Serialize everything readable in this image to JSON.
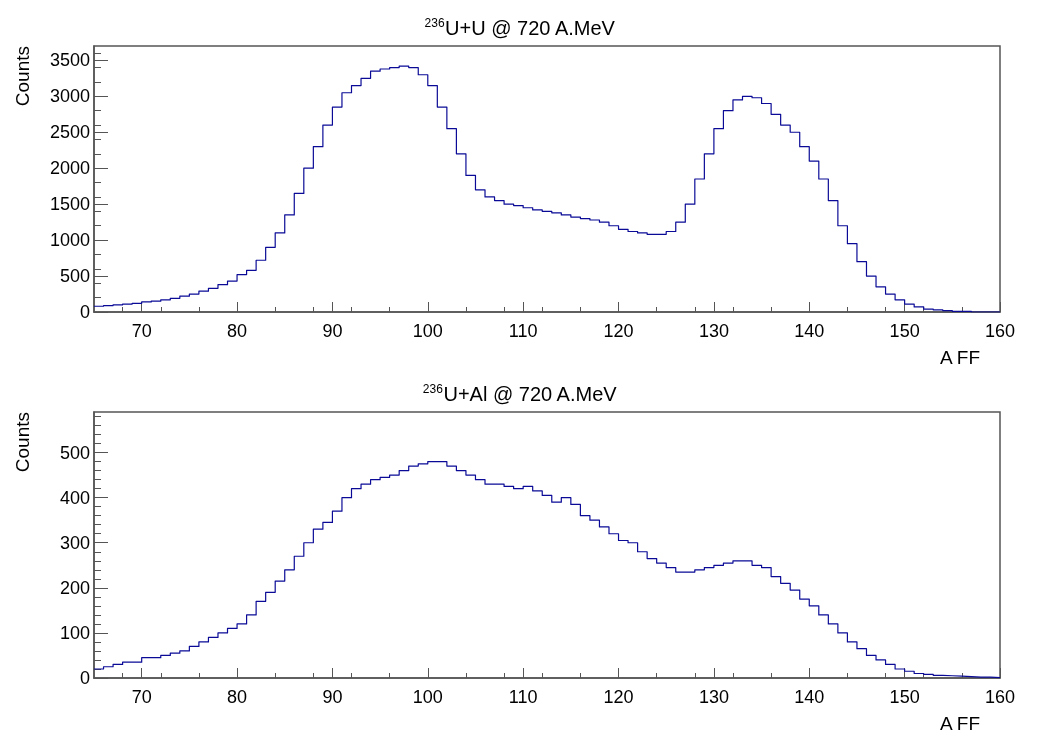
{
  "chart_data": [
    {
      "type": "histogram",
      "title": "$^{236}$U+U @ 720 A.MeV",
      "xlabel": "A FF",
      "ylabel": "Counts",
      "color": "#0a0a96",
      "xlim": [
        65,
        160
      ],
      "xticks": [
        70,
        80,
        90,
        100,
        110,
        120,
        130,
        140,
        150,
        160
      ],
      "ylim": [
        0,
        3700
      ],
      "yticks": [
        0,
        500,
        1000,
        1500,
        2000,
        2500,
        3000,
        3500
      ],
      "grid": false,
      "bins": [
        65,
        66,
        67,
        68,
        69,
        70,
        71,
        72,
        73,
        74,
        75,
        76,
        77,
        78,
        79,
        80,
        81,
        82,
        83,
        84,
        85,
        86,
        87,
        88,
        89,
        90,
        91,
        92,
        93,
        94,
        95,
        96,
        97,
        98,
        99,
        100,
        101,
        102,
        103,
        104,
        105,
        106,
        107,
        108,
        109,
        110,
        111,
        112,
        113,
        114,
        115,
        116,
        117,
        118,
        119,
        120,
        121,
        122,
        123,
        124,
        125,
        126,
        127,
        128,
        129,
        130,
        131,
        132,
        133,
        134,
        135,
        136,
        137,
        138,
        139,
        140,
        141,
        142,
        143,
        144,
        145,
        146,
        147,
        148,
        149,
        150,
        151,
        152,
        153,
        154,
        155,
        156,
        157,
        158,
        159,
        160
      ],
      "values": [
        80,
        90,
        100,
        110,
        120,
        140,
        150,
        170,
        190,
        220,
        250,
        290,
        330,
        380,
        430,
        520,
        580,
        720,
        900,
        1100,
        1350,
        1650,
        2000,
        2300,
        2600,
        2850,
        3050,
        3150,
        3250,
        3350,
        3380,
        3400,
        3420,
        3400,
        3300,
        3150,
        2850,
        2550,
        2200,
        1900,
        1700,
        1600,
        1550,
        1500,
        1480,
        1450,
        1420,
        1400,
        1380,
        1350,
        1320,
        1300,
        1280,
        1250,
        1200,
        1150,
        1120,
        1100,
        1080,
        1080,
        1120,
        1250,
        1500,
        1850,
        2200,
        2550,
        2800,
        2950,
        3000,
        2980,
        2900,
        2750,
        2600,
        2500,
        2300,
        2100,
        1850,
        1550,
        1200,
        950,
        700,
        500,
        350,
        250,
        170,
        110,
        70,
        40,
        30,
        20,
        10,
        10,
        0,
        0,
        0
      ]
    },
    {
      "type": "histogram",
      "title": "$^{236}$U+Al @ 720 A.MeV",
      "xlabel": "A FF",
      "ylabel": "Counts",
      "color": "#0a0a96",
      "xlim": [
        65,
        160
      ],
      "xticks": [
        70,
        80,
        90,
        100,
        110,
        120,
        130,
        140,
        150,
        160
      ],
      "ylim": [
        0,
        590
      ],
      "yticks": [
        0,
        100,
        200,
        300,
        400,
        500
      ],
      "grid": false,
      "bins": [
        65,
        66,
        67,
        68,
        69,
        70,
        71,
        72,
        73,
        74,
        75,
        76,
        77,
        78,
        79,
        80,
        81,
        82,
        83,
        84,
        85,
        86,
        87,
        88,
        89,
        90,
        91,
        92,
        93,
        94,
        95,
        96,
        97,
        98,
        99,
        100,
        101,
        102,
        103,
        104,
        105,
        106,
        107,
        108,
        109,
        110,
        111,
        112,
        113,
        114,
        115,
        116,
        117,
        118,
        119,
        120,
        121,
        122,
        123,
        124,
        125,
        126,
        127,
        128,
        129,
        130,
        131,
        132,
        133,
        134,
        135,
        136,
        137,
        138,
        139,
        140,
        141,
        142,
        143,
        144,
        145,
        146,
        147,
        148,
        149,
        150,
        151,
        152,
        153,
        154,
        155,
        156,
        157,
        158,
        159,
        160
      ],
      "values": [
        20,
        25,
        30,
        35,
        35,
        45,
        45,
        50,
        55,
        60,
        70,
        80,
        90,
        100,
        110,
        120,
        140,
        170,
        190,
        215,
        240,
        270,
        300,
        330,
        345,
        370,
        400,
        420,
        430,
        440,
        445,
        450,
        460,
        470,
        475,
        480,
        480,
        470,
        460,
        450,
        440,
        430,
        430,
        425,
        420,
        425,
        415,
        405,
        390,
        400,
        385,
        360,
        350,
        335,
        320,
        305,
        300,
        280,
        265,
        255,
        245,
        235,
        235,
        240,
        245,
        250,
        255,
        260,
        260,
        250,
        245,
        225,
        210,
        195,
        175,
        160,
        140,
        120,
        100,
        80,
        65,
        50,
        40,
        30,
        20,
        15,
        10,
        8,
        6,
        5,
        4,
        3,
        2,
        2,
        1
      ]
    }
  ]
}
